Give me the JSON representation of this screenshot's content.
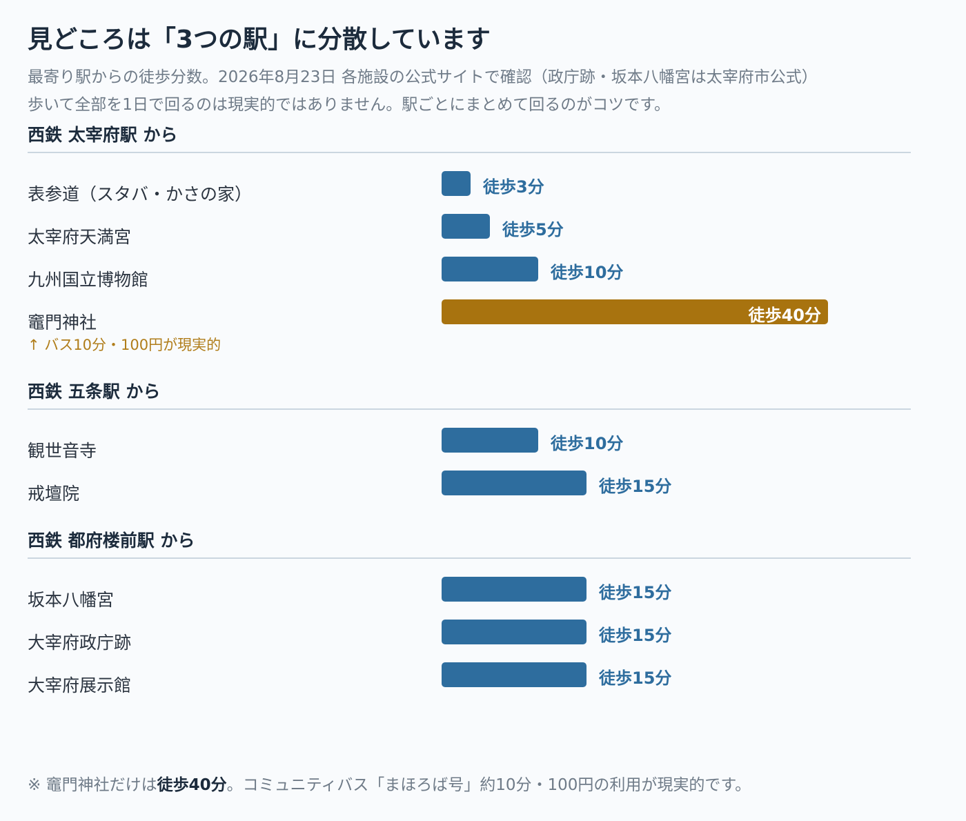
{
  "header": {
    "title": "見どころは「3つの駅」に分散しています",
    "subtitle_line1": "最寄り駅からの徒歩分数。2026年8月23日 各施設の公式サイトで確認（政庁跡・坂本八幡宮は太宰府市公式）",
    "subtitle_line2": "歩いて全部を1日で回るのは現実的ではありません。駅ごとにまとめて回るのがコツです。"
  },
  "colors": {
    "normal_bar": "#2e6d9e",
    "highlight_bar": "#a8730f",
    "accent_text": "#2e6d9e",
    "note_text": "#b07d1a"
  },
  "chart_data": {
    "type": "bar",
    "orientation": "horizontal",
    "unit": "分",
    "value_label_prefix": "徒歩",
    "groups": [
      {
        "name": "西鉄 太宰府駅 から",
        "items": [
          {
            "label": "表参道（スタバ・かさの家）",
            "minutes": 3
          },
          {
            "label": "太宰府天満宮",
            "minutes": 5
          },
          {
            "label": "九州国立博物館",
            "minutes": 10
          },
          {
            "label": "竈門神社",
            "minutes": 40,
            "highlight": true,
            "note": "↑ バス10分・100円が現実的"
          }
        ]
      },
      {
        "name": "西鉄 五条駅 から",
        "items": [
          {
            "label": "観世音寺",
            "minutes": 10
          },
          {
            "label": "戒壇院",
            "minutes": 15
          }
        ]
      },
      {
        "name": "西鉄 都府楼前駅 から",
        "items": [
          {
            "label": "坂本八幡宮",
            "minutes": 15
          },
          {
            "label": "大宰府政庁跡",
            "minutes": 15
          },
          {
            "label": "大宰府展示館",
            "minutes": 15
          }
        ]
      }
    ]
  },
  "footer": {
    "prefix": "※ 竈門神社だけは",
    "bold": "徒歩40分",
    "suffix": "。コミュニティバス「まほろば号」約10分・100円の利用が現実的です。"
  }
}
